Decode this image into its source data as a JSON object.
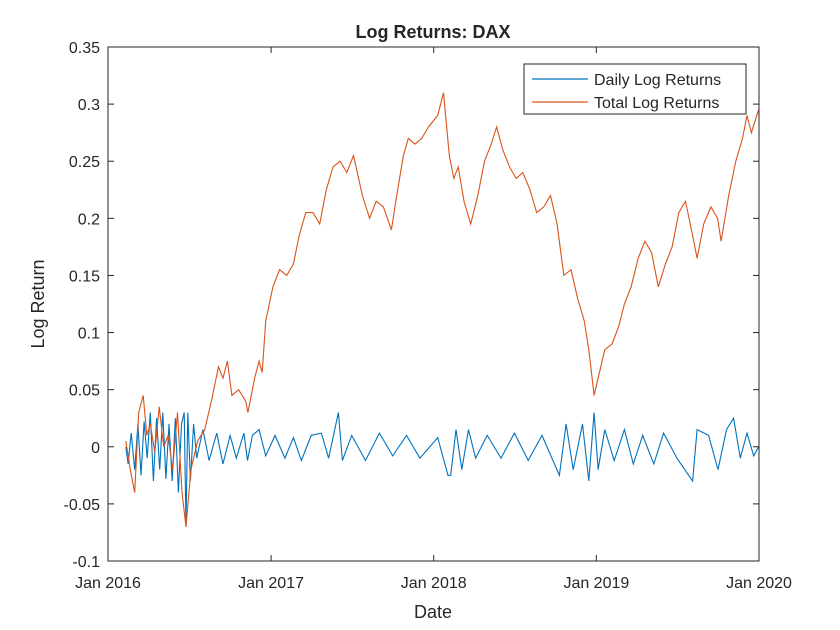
{
  "chart_data": {
    "type": "line",
    "title": "Log Returns: DAX",
    "xlabel": "Date",
    "ylabel": "Log Return",
    "xlim": [
      "2016-01-01",
      "2020-01-01"
    ],
    "ylim": [
      -0.1,
      0.35
    ],
    "x_ticks": [
      {
        "date": "2016-01-01",
        "label": "Jan 2016"
      },
      {
        "date": "2017-01-01",
        "label": "Jan 2017"
      },
      {
        "date": "2018-01-01",
        "label": "Jan 2018"
      },
      {
        "date": "2019-01-01",
        "label": "Jan 2019"
      },
      {
        "date": "2020-01-01",
        "label": "Jan 2020"
      }
    ],
    "y_ticks": [
      -0.1,
      -0.05,
      0,
      0.05,
      0.1,
      0.15,
      0.2,
      0.25,
      0.3,
      0.35
    ],
    "y_tick_labels": [
      "-0.1",
      "-0.05",
      "0",
      "0.05",
      "0.1",
      "0.15",
      "0.2",
      "0.25",
      "0.3",
      "0.35"
    ],
    "grid": false,
    "legend_position": "top-right",
    "series": [
      {
        "name": "Daily Log Returns",
        "color": "#0072BD",
        "points": [
          [
            "2016-02-10",
            0.0
          ],
          [
            "2016-02-15",
            -0.015
          ],
          [
            "2016-02-22",
            0.012
          ],
          [
            "2016-03-01",
            -0.02
          ],
          [
            "2016-03-08",
            0.02
          ],
          [
            "2016-03-15",
            -0.025
          ],
          [
            "2016-03-22",
            0.022
          ],
          [
            "2016-03-29",
            -0.01
          ],
          [
            "2016-04-05",
            0.03
          ],
          [
            "2016-04-12",
            -0.03
          ],
          [
            "2016-04-19",
            0.025
          ],
          [
            "2016-04-26",
            -0.02
          ],
          [
            "2016-05-03",
            0.03
          ],
          [
            "2016-05-10",
            -0.028
          ],
          [
            "2016-05-17",
            0.02
          ],
          [
            "2016-05-24",
            -0.03
          ],
          [
            "2016-05-31",
            0.025
          ],
          [
            "2016-06-07",
            -0.04
          ],
          [
            "2016-06-14",
            0.02
          ],
          [
            "2016-06-20",
            0.03
          ],
          [
            "2016-06-24",
            -0.07
          ],
          [
            "2016-06-28",
            0.03
          ],
          [
            "2016-07-04",
            -0.03
          ],
          [
            "2016-07-11",
            0.02
          ],
          [
            "2016-07-18",
            -0.01
          ],
          [
            "2016-08-01",
            0.015
          ],
          [
            "2016-08-15",
            -0.012
          ],
          [
            "2016-09-01",
            0.012
          ],
          [
            "2016-09-15",
            -0.015
          ],
          [
            "2016-10-01",
            0.01
          ],
          [
            "2016-10-15",
            -0.01
          ],
          [
            "2016-11-01",
            0.012
          ],
          [
            "2016-11-09",
            -0.012
          ],
          [
            "2016-11-20",
            0.01
          ],
          [
            "2016-12-05",
            0.015
          ],
          [
            "2016-12-20",
            -0.008
          ],
          [
            "2017-01-10",
            0.01
          ],
          [
            "2017-02-01",
            -0.01
          ],
          [
            "2017-02-20",
            0.008
          ],
          [
            "2017-03-10",
            -0.012
          ],
          [
            "2017-04-01",
            0.01
          ],
          [
            "2017-04-24",
            0.012
          ],
          [
            "2017-05-10",
            -0.01
          ],
          [
            "2017-06-01",
            0.03
          ],
          [
            "2017-06-10",
            -0.012
          ],
          [
            "2017-07-01",
            0.01
          ],
          [
            "2017-08-01",
            -0.012
          ],
          [
            "2017-09-01",
            0.012
          ],
          [
            "2017-10-01",
            -0.008
          ],
          [
            "2017-11-01",
            0.01
          ],
          [
            "2017-12-01",
            -0.01
          ],
          [
            "2018-01-10",
            0.008
          ],
          [
            "2018-02-02",
            -0.025
          ],
          [
            "2018-02-08",
            -0.025
          ],
          [
            "2018-02-20",
            0.015
          ],
          [
            "2018-03-05",
            -0.02
          ],
          [
            "2018-03-20",
            0.015
          ],
          [
            "2018-04-05",
            -0.01
          ],
          [
            "2018-05-01",
            0.01
          ],
          [
            "2018-06-01",
            -0.01
          ],
          [
            "2018-07-01",
            0.012
          ],
          [
            "2018-08-01",
            -0.012
          ],
          [
            "2018-09-01",
            0.01
          ],
          [
            "2018-10-10",
            -0.025
          ],
          [
            "2018-10-25",
            0.02
          ],
          [
            "2018-11-10",
            -0.02
          ],
          [
            "2018-12-01",
            0.02
          ],
          [
            "2018-12-15",
            -0.03
          ],
          [
            "2018-12-27",
            0.03
          ],
          [
            "2019-01-05",
            -0.02
          ],
          [
            "2019-01-20",
            0.015
          ],
          [
            "2019-02-10",
            -0.012
          ],
          [
            "2019-03-05",
            0.015
          ],
          [
            "2019-03-25",
            -0.015
          ],
          [
            "2019-04-15",
            0.01
          ],
          [
            "2019-05-10",
            -0.015
          ],
          [
            "2019-06-01",
            0.012
          ],
          [
            "2019-07-01",
            -0.01
          ],
          [
            "2019-08-05",
            -0.03
          ],
          [
            "2019-08-15",
            0.015
          ],
          [
            "2019-09-10",
            0.01
          ],
          [
            "2019-10-01",
            -0.02
          ],
          [
            "2019-10-20",
            0.015
          ],
          [
            "2019-11-05",
            0.025
          ],
          [
            "2019-11-20",
            -0.01
          ],
          [
            "2019-12-05",
            0.012
          ],
          [
            "2019-12-20",
            -0.008
          ],
          [
            "2019-12-31",
            0.0
          ]
        ]
      },
      {
        "name": "Total Log Returns",
        "color": "#D95319",
        "points": [
          [
            "2016-02-10",
            0.005
          ],
          [
            "2016-02-20",
            -0.02
          ],
          [
            "2016-03-01",
            -0.04
          ],
          [
            "2016-03-10",
            0.03
          ],
          [
            "2016-03-20",
            0.045
          ],
          [
            "2016-03-28",
            0.01
          ],
          [
            "2016-04-05",
            0.02
          ],
          [
            "2016-04-15",
            -0.005
          ],
          [
            "2016-04-25",
            0.035
          ],
          [
            "2016-05-05",
            0.0
          ],
          [
            "2016-05-15",
            0.01
          ],
          [
            "2016-05-25",
            -0.02
          ],
          [
            "2016-06-05",
            0.03
          ],
          [
            "2016-06-15",
            -0.04
          ],
          [
            "2016-06-24",
            -0.07
          ],
          [
            "2016-07-05",
            -0.02
          ],
          [
            "2016-07-20",
            0.005
          ],
          [
            "2016-08-05",
            0.015
          ],
          [
            "2016-08-20",
            0.04
          ],
          [
            "2016-09-05",
            0.07
          ],
          [
            "2016-09-15",
            0.06
          ],
          [
            "2016-09-25",
            0.075
          ],
          [
            "2016-10-05",
            0.045
          ],
          [
            "2016-10-20",
            0.05
          ],
          [
            "2016-11-05",
            0.04
          ],
          [
            "2016-11-10",
            0.03
          ],
          [
            "2016-11-25",
            0.06
          ],
          [
            "2016-12-05",
            0.075
          ],
          [
            "2016-12-12",
            0.065
          ],
          [
            "2016-12-20",
            0.11
          ],
          [
            "2017-01-05",
            0.14
          ],
          [
            "2017-01-20",
            0.155
          ],
          [
            "2017-02-05",
            0.15
          ],
          [
            "2017-02-20",
            0.16
          ],
          [
            "2017-03-05",
            0.185
          ],
          [
            "2017-03-20",
            0.205
          ],
          [
            "2017-04-05",
            0.205
          ],
          [
            "2017-04-20",
            0.195
          ],
          [
            "2017-05-05",
            0.225
          ],
          [
            "2017-05-20",
            0.245
          ],
          [
            "2017-06-05",
            0.25
          ],
          [
            "2017-06-20",
            0.24
          ],
          [
            "2017-07-05",
            0.255
          ],
          [
            "2017-07-25",
            0.22
          ],
          [
            "2017-08-10",
            0.2
          ],
          [
            "2017-08-25",
            0.215
          ],
          [
            "2017-09-10",
            0.21
          ],
          [
            "2017-09-28",
            0.19
          ],
          [
            "2017-10-10",
            0.22
          ],
          [
            "2017-10-25",
            0.255
          ],
          [
            "2017-11-05",
            0.27
          ],
          [
            "2017-11-20",
            0.265
          ],
          [
            "2017-12-05",
            0.27
          ],
          [
            "2017-12-20",
            0.28
          ],
          [
            "2018-01-10",
            0.29
          ],
          [
            "2018-01-23",
            0.31
          ],
          [
            "2018-02-05",
            0.255
          ],
          [
            "2018-02-15",
            0.235
          ],
          [
            "2018-02-25",
            0.245
          ],
          [
            "2018-03-10",
            0.215
          ],
          [
            "2018-03-25",
            0.195
          ],
          [
            "2018-04-10",
            0.22
          ],
          [
            "2018-04-25",
            0.25
          ],
          [
            "2018-05-10",
            0.265
          ],
          [
            "2018-05-22",
            0.28
          ],
          [
            "2018-06-05",
            0.26
          ],
          [
            "2018-06-20",
            0.245
          ],
          [
            "2018-07-05",
            0.235
          ],
          [
            "2018-07-20",
            0.24
          ],
          [
            "2018-08-05",
            0.225
          ],
          [
            "2018-08-20",
            0.205
          ],
          [
            "2018-09-05",
            0.21
          ],
          [
            "2018-09-20",
            0.22
          ],
          [
            "2018-10-05",
            0.195
          ],
          [
            "2018-10-20",
            0.15
          ],
          [
            "2018-11-05",
            0.155
          ],
          [
            "2018-11-20",
            0.13
          ],
          [
            "2018-12-05",
            0.11
          ],
          [
            "2018-12-15",
            0.085
          ],
          [
            "2018-12-27",
            0.045
          ],
          [
            "2019-01-05",
            0.06
          ],
          [
            "2019-01-20",
            0.085
          ],
          [
            "2019-02-05",
            0.09
          ],
          [
            "2019-02-20",
            0.105
          ],
          [
            "2019-03-05",
            0.125
          ],
          [
            "2019-03-20",
            0.14
          ],
          [
            "2019-04-05",
            0.165
          ],
          [
            "2019-04-20",
            0.18
          ],
          [
            "2019-05-05",
            0.17
          ],
          [
            "2019-05-20",
            0.14
          ],
          [
            "2019-06-05",
            0.16
          ],
          [
            "2019-06-20",
            0.175
          ],
          [
            "2019-07-05",
            0.205
          ],
          [
            "2019-07-20",
            0.215
          ],
          [
            "2019-08-05",
            0.185
          ],
          [
            "2019-08-15",
            0.165
          ],
          [
            "2019-08-30",
            0.195
          ],
          [
            "2019-09-15",
            0.21
          ],
          [
            "2019-09-30",
            0.2
          ],
          [
            "2019-10-08",
            0.18
          ],
          [
            "2019-10-25",
            0.22
          ],
          [
            "2019-11-10",
            0.25
          ],
          [
            "2019-11-25",
            0.27
          ],
          [
            "2019-12-05",
            0.29
          ],
          [
            "2019-12-15",
            0.275
          ],
          [
            "2019-12-31",
            0.295
          ]
        ]
      }
    ]
  }
}
